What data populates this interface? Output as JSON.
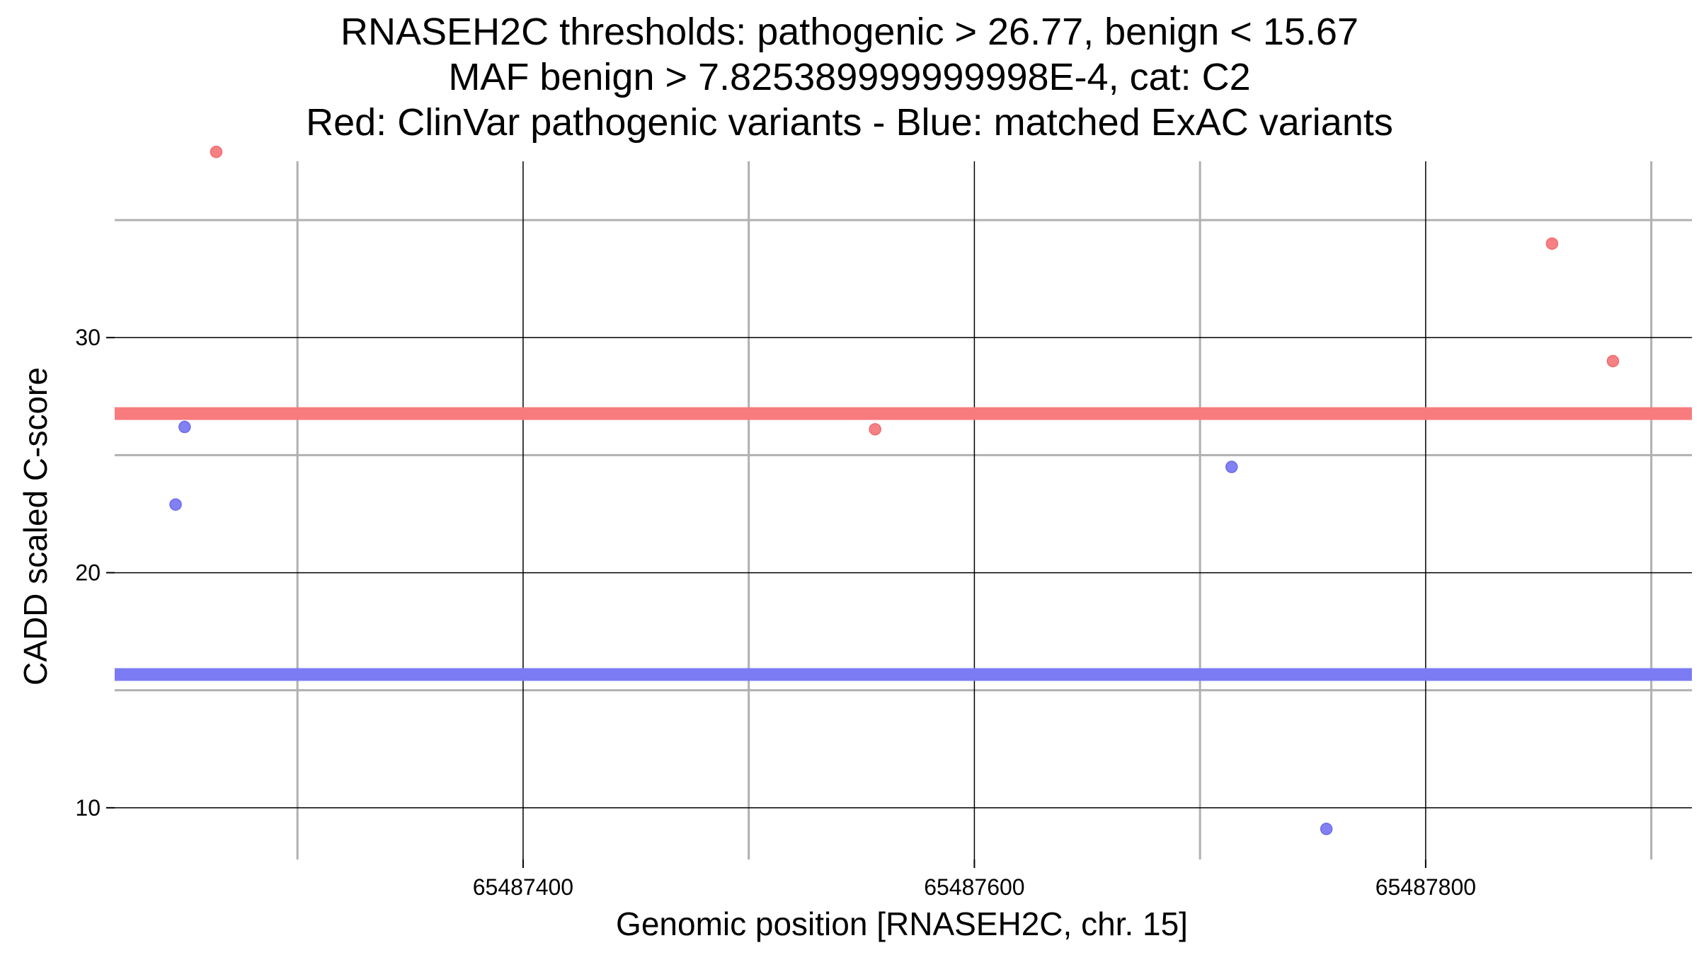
{
  "chart_data": {
    "type": "scatter",
    "title_lines": [
      "RNASEH2C thresholds: pathogenic > 26.77, benign < 15.67",
      "MAF benign > 7.825389999999998E-4, cat: C2",
      "Red: ClinVar pathogenic variants - Blue: matched ExAC variants"
    ],
    "xlabel": "Genomic position [RNASEH2C, chr. 15]",
    "ylabel": "CADD scaled C-score",
    "xlim": [
      65487219,
      65487918
    ],
    "ylim": [
      7.8,
      37.5
    ],
    "x_major_ticks": [
      65487400,
      65487600,
      65487800
    ],
    "x_minor_ticks": [
      65487300,
      65487500,
      65487700,
      65487900
    ],
    "y_major_ticks": [
      10,
      20,
      30
    ],
    "y_minor_ticks": [
      15,
      25,
      35
    ],
    "thresholds": [
      {
        "name": "pathogenic",
        "value": 26.77,
        "color": "#f87b7e"
      },
      {
        "name": "benign",
        "value": 15.67,
        "color": "#7b7bf4"
      }
    ],
    "series": [
      {
        "name": "ClinVar pathogenic variants",
        "color": "#f26b6e",
        "points": [
          {
            "x": 65487264,
            "y": 37.9
          },
          {
            "x": 65487556,
            "y": 26.1
          },
          {
            "x": 65487856,
            "y": 34.0
          },
          {
            "x": 65487883,
            "y": 29.0
          }
        ]
      },
      {
        "name": "matched ExAC variants",
        "color": "#6b6bf0",
        "points": [
          {
            "x": 65487250,
            "y": 26.2
          },
          {
            "x": 65487246,
            "y": 22.9
          },
          {
            "x": 65487714,
            "y": 24.5
          },
          {
            "x": 65487756,
            "y": 9.1
          }
        ]
      }
    ],
    "grid": true
  }
}
